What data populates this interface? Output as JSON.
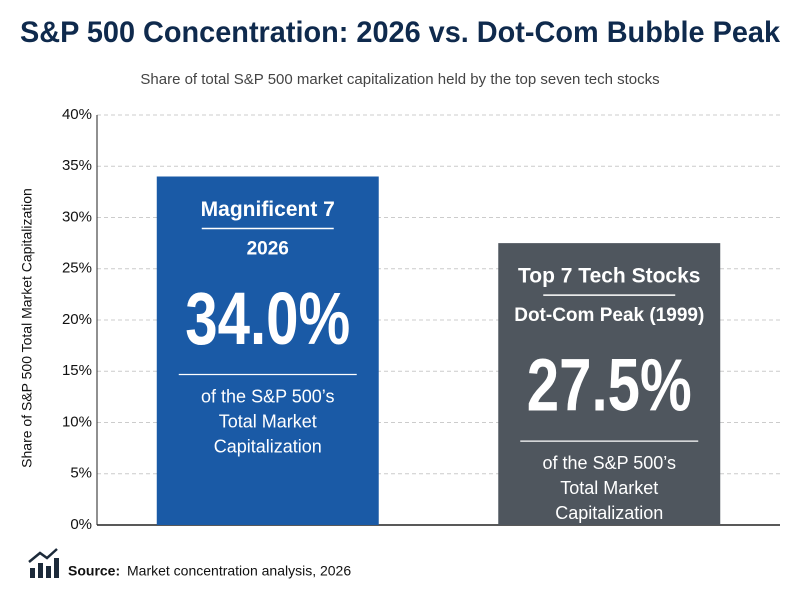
{
  "chart_data": {
    "type": "bar",
    "title": "S&P 500 Concentration: 2026 vs. Dot-Com Bubble Peak",
    "subtitle": "Share of total S&P 500 market capitalization held by the top seven tech stocks",
    "y_label": "Share of S&P 500 Total Market Capitalization",
    "categories": [
      "Magnificent 7",
      "Top 7 Tech Stocks"
    ],
    "sublabels": [
      "2026",
      "Dot-Com Peak (1999)"
    ],
    "values": [
      34.0,
      27.5
    ],
    "value_labels": [
      "34.0%",
      "27.5%"
    ],
    "notes": [
      [
        "of the S&P 500’s",
        "Total Market",
        "Capitalization"
      ],
      [
        "of the S&P 500’s",
        "Total Market",
        "Capitalization"
      ]
    ],
    "colors": [
      "#1a5aa6",
      "#4f565e"
    ],
    "ylim": [
      0,
      40
    ],
    "yticks": [
      {
        "value": 0,
        "label": "0%"
      },
      {
        "value": 5,
        "label": "5%"
      },
      {
        "value": 10,
        "label": "10%"
      },
      {
        "value": 15,
        "label": "15%"
      },
      {
        "value": 20,
        "label": "20%"
      },
      {
        "value": 25,
        "label": "25%"
      },
      {
        "value": 30,
        "label": "30%"
      },
      {
        "value": 35,
        "label": "35%"
      },
      {
        "value": 40,
        "label": "40%"
      }
    ],
    "grid": true,
    "source_label": "Source:",
    "source": "Market concentration analysis, 2026"
  }
}
